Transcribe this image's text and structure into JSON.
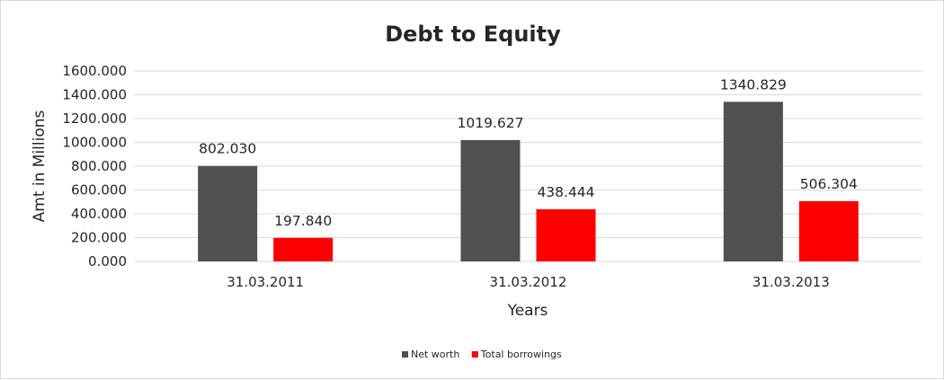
{
  "chart_data": {
    "type": "bar",
    "title": "Debt to Equity",
    "xlabel": "Years",
    "ylabel": "Amt in Millions",
    "categories": [
      "31.03.2011",
      "31.03.2012",
      "31.03.2013"
    ],
    "series": [
      {
        "name": "Net worth",
        "values": [
          802.03,
          1019.627,
          1340.829
        ],
        "labels": [
          "802.030",
          "1019.627",
          "1340.829"
        ],
        "color": "#505050"
      },
      {
        "name": "Total borrowings",
        "values": [
          197.84,
          438.444,
          506.304
        ],
        "labels": [
          "197.840",
          "438.444",
          "506.304"
        ],
        "color": "#ff0000"
      }
    ],
    "ylim": [
      0,
      1600
    ],
    "yticks": [
      "0.000",
      "200.000",
      "400.000",
      "600.000",
      "800.000",
      "1000.000",
      "1200.000",
      "1400.000",
      "1600.000"
    ],
    "grid": true,
    "legend_position": "bottom"
  }
}
